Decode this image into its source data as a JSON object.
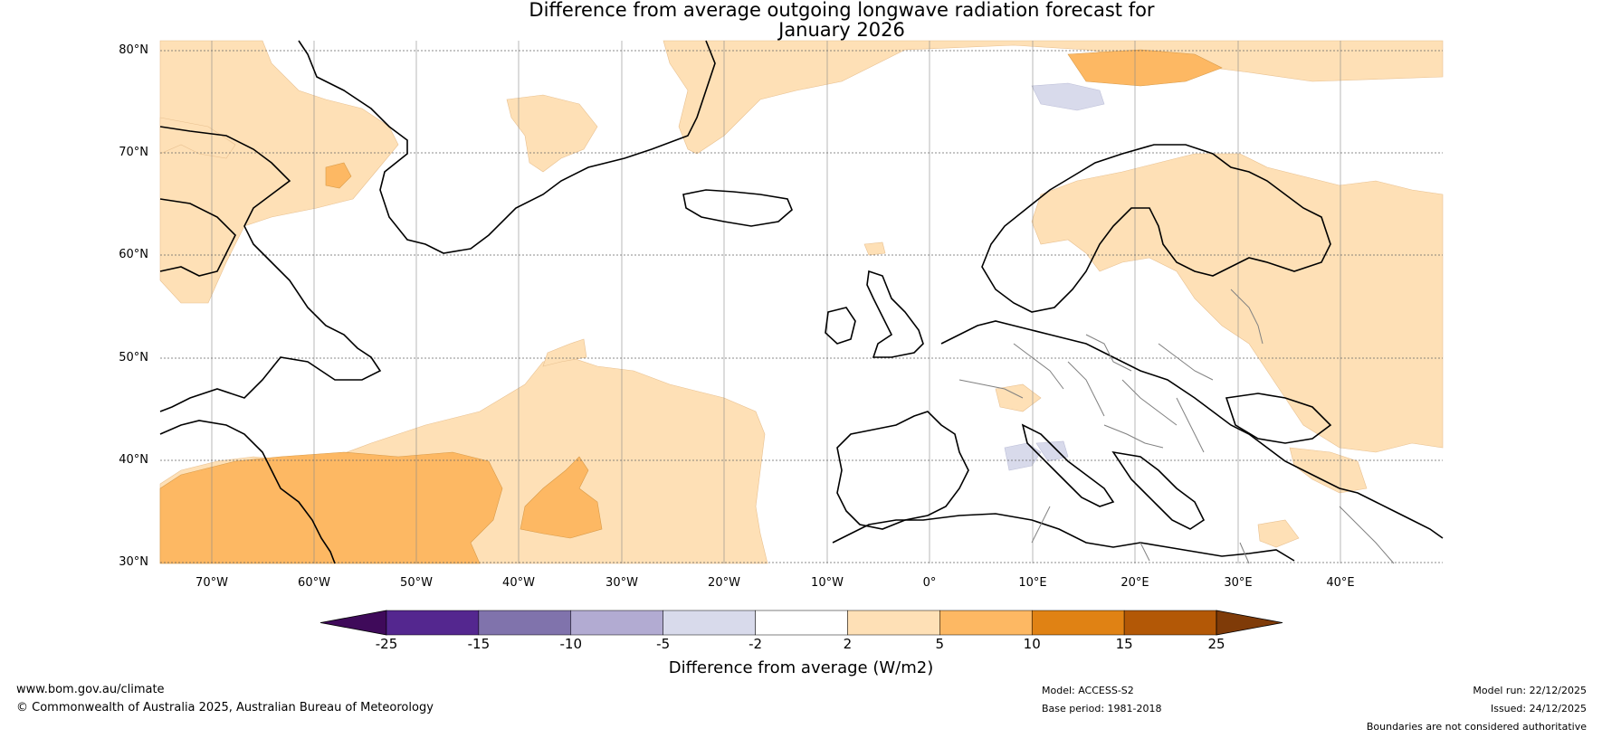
{
  "title": {
    "line1": "Difference from average outgoing longwave radiation forecast for",
    "line2": "January 2026"
  },
  "axes": {
    "lat_labels": [
      "80°N",
      "70°N",
      "60°N",
      "50°N",
      "40°N",
      "30°N"
    ],
    "lon_labels": [
      "70°W",
      "60°W",
      "50°W",
      "40°W",
      "30°W",
      "20°W",
      "10°W",
      "0°",
      "10°E",
      "20°E",
      "30°E",
      "40°E"
    ]
  },
  "colorbar": {
    "title": "Difference from average (W/m2)",
    "tick_labels": [
      "-25",
      "-15",
      "-10",
      "-5",
      "-2",
      "2",
      "5",
      "10",
      "15",
      "25"
    ],
    "colors": [
      "#3f0a5a",
      "#54278f",
      "#8073ac",
      "#b2abd2",
      "#d8daeb",
      "#ffffff",
      "#fee0b6",
      "#fdb863",
      "#e08214",
      "#b35806",
      "#7f3b08"
    ]
  },
  "footer": {
    "website": "www.bom.gov.au/climate",
    "copyright": "© Commonwealth of Australia 2025, Australian Bureau of Meteorology",
    "model": "Model: ACCESS-S2",
    "base_period": "Base period: 1981-2018",
    "model_run": "Model run: 22/12/2025",
    "issued": "Issued: 24/12/2025",
    "disclaimer": "Boundaries are not considered authoritative"
  }
}
